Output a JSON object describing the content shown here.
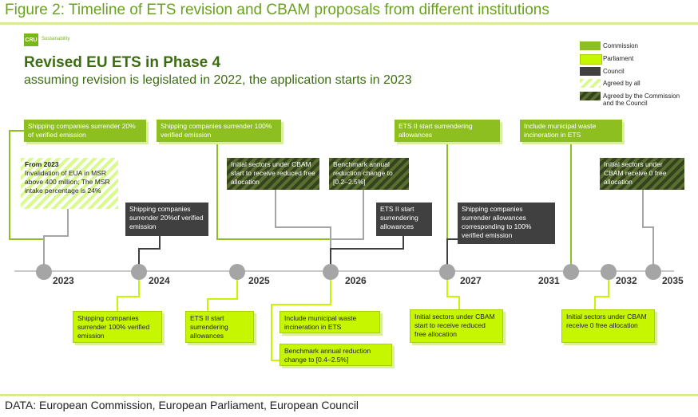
{
  "figure_title": "Figure 2: Timeline of ETS revision and CBAM proposals from different institutions",
  "logo": {
    "badge": "CRU",
    "text": "Sustainability"
  },
  "title": "Revised EU ETS in Phase 4",
  "subtitle": "assuming revision is legislated in 2022, the application starts in 2023",
  "legend": [
    "Commission",
    "Parliament",
    "Council",
    "Agreed by all",
    "Agreed by the Commission and the Council"
  ],
  "years": [
    "2023",
    "2024",
    "2025",
    "2026",
    "2027",
    "2031",
    "2032",
    "2035"
  ],
  "boxes": {
    "c_2023_ship": "Shipping companies surrender 20% of verified emission",
    "a_2023_msr_head": "From 2023",
    "a_2023_msr_body": "Invalidation of EUA in MSR above 400 million; The MSR intake percentage is 24%",
    "c_2025_ship": "Shipping companies surrender 100% verified emission",
    "cc_2026_cbam": "Initial sectors under CBAM start to receive reduced free allocation",
    "cc_2026_bench": "Benchmark annual reduction change to [0.2–2.5%]",
    "c_2027_ets2": "ETS II start surrendering allowances",
    "c_2031_waste": "Include municipal waste incineration in ETS",
    "cc_2032_cbam": "Initial sectors under CBAM receive 0 free allocation",
    "co_2024_ship": "Shipping companies surrender 20%of verified emission",
    "co_2026_ets2": "ETS II start surrendering allowances",
    "co_2027_ship": "Shipping companies surrender allowances corresponding to 100% verified emission",
    "p_2024_ship": "Shipping companies surrender 100% verified emission",
    "p_2025_ets2": "ETS II start surrendering allowances",
    "p_2026_waste": "Include municipal waste incineration in ETS",
    "p_2026_bench": "Benchmark annual reduction change to [0.4–2.5%]",
    "p_2027_cbam": "Initial sectors under CBAM start to receive reduced free allocation",
    "p_2032_cbam": "Initial sectors under CBAM receive 0 free allocation"
  },
  "colors": {
    "commission": "#8cbf1f",
    "parliament": "#c7f700",
    "council": "#404040",
    "title_green": "#3d6d12",
    "figure_title_green": "#6aa121"
  },
  "source": "DATA: European Commission, European Parliament, European Council"
}
